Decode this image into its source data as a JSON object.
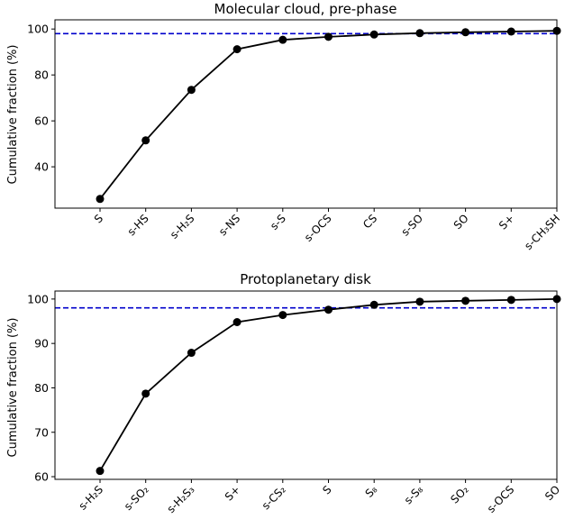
{
  "chart_data": [
    {
      "type": "line",
      "title": "Molecular cloud, pre-phase",
      "ylabel": "Cumulative fraction (%)",
      "xlabel": "",
      "categories": [
        "S",
        "s-HS",
        "s-H₂S",
        "s-NS",
        "s-S",
        "s-OCS",
        "CS",
        "s-SO",
        "SO",
        "S+",
        "s-CH₃SH"
      ],
      "values": [
        26,
        51.5,
        73.5,
        91.2,
        95.3,
        96.6,
        97.6,
        98.2,
        98.6,
        98.9,
        99.2
      ],
      "ylim": [
        22,
        104
      ],
      "yticks": [
        40,
        60,
        80,
        100
      ],
      "reference_line": {
        "y": 98,
        "color": "#0000cc",
        "style": "dashed"
      },
      "line_color": "#000000",
      "grid": false
    },
    {
      "type": "line",
      "title": "Protoplanetary disk",
      "ylabel": "Cumulative fraction (%)",
      "xlabel": "",
      "categories": [
        "s-H₂S",
        "s-SO₂",
        "s-H₂S₃",
        "S+",
        "s-CS₂",
        "S",
        "S₈",
        "s-S₈",
        "SO₂",
        "s-OCS",
        "SO"
      ],
      "values": [
        61.3,
        78.7,
        87.9,
        94.8,
        96.4,
        97.6,
        98.7,
        99.4,
        99.6,
        99.8,
        100
      ],
      "ylim": [
        59.4,
        101.8
      ],
      "yticks": [
        60,
        70,
        80,
        90,
        100
      ],
      "reference_line": {
        "y": 98,
        "color": "#0000cc",
        "style": "dashed"
      },
      "line_color": "#000000",
      "grid": false
    }
  ]
}
